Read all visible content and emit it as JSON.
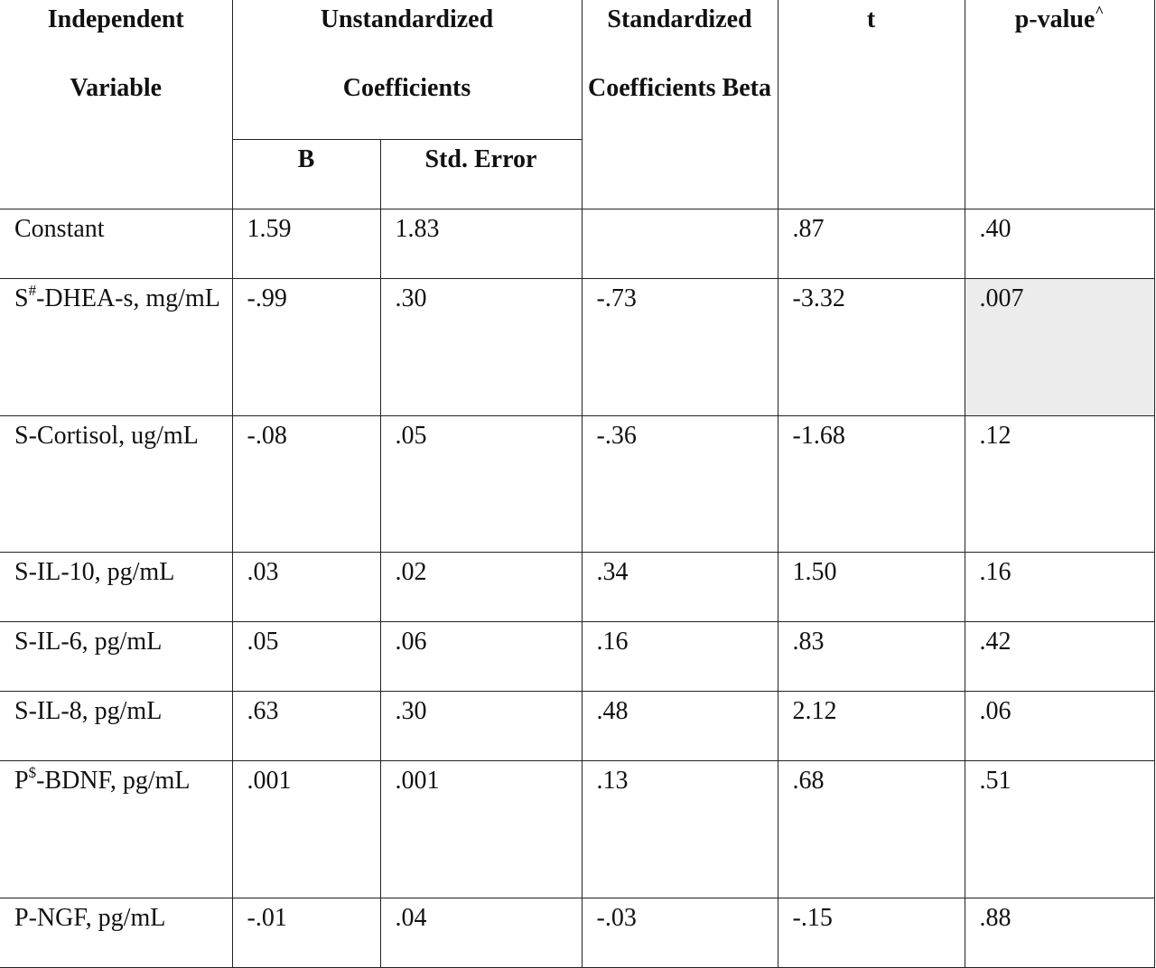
{
  "table": {
    "header": {
      "variable": "Independent Variable",
      "unstandardized": "Unstandardized Coefficients",
      "b": "B",
      "std_error": "Std. Error",
      "standardized": "Standardized Coefficients Beta",
      "t": "t",
      "p_value": {
        "base": "p-value",
        "sup": "^"
      }
    },
    "rows": [
      {
        "variable": "Constant",
        "values": [
          "1.59",
          "1.83",
          "",
          ".87",
          ".40"
        ]
      },
      {
        "variable": {
          "base": "S",
          "sup": "#",
          "rest": "-DHEA-s, mg/mL"
        },
        "values": [
          "-.99",
          ".30",
          "-.73",
          "-3.32",
          ".007"
        ],
        "shaded": 4
      },
      {
        "variable": "S-Cortisol, ug/mL",
        "values": [
          "-.08",
          ".05",
          "-.36",
          "-1.68",
          ".12"
        ]
      },
      {
        "variable": "S-IL-10, pg/mL",
        "values": [
          ".03",
          ".02",
          ".34",
          "1.50",
          ".16"
        ]
      },
      {
        "variable": "S-IL-6, pg/mL",
        "values": [
          ".05",
          ".06",
          ".16",
          ".83",
          ".42"
        ]
      },
      {
        "variable": "S-IL-8, pg/mL",
        "values": [
          ".63",
          ".30",
          ".48",
          "2.12",
          ".06"
        ]
      },
      {
        "variable": {
          "base": "P",
          "sup": "$",
          "rest": "-BDNF, pg/mL"
        },
        "values": [
          ".001",
          ".001",
          ".13",
          ".68",
          ".51"
        ]
      },
      {
        "variable": "P-NGF, pg/mL",
        "values": [
          "-.01",
          ".04",
          "-.03",
          "-.15",
          ".88"
        ]
      }
    ]
  }
}
